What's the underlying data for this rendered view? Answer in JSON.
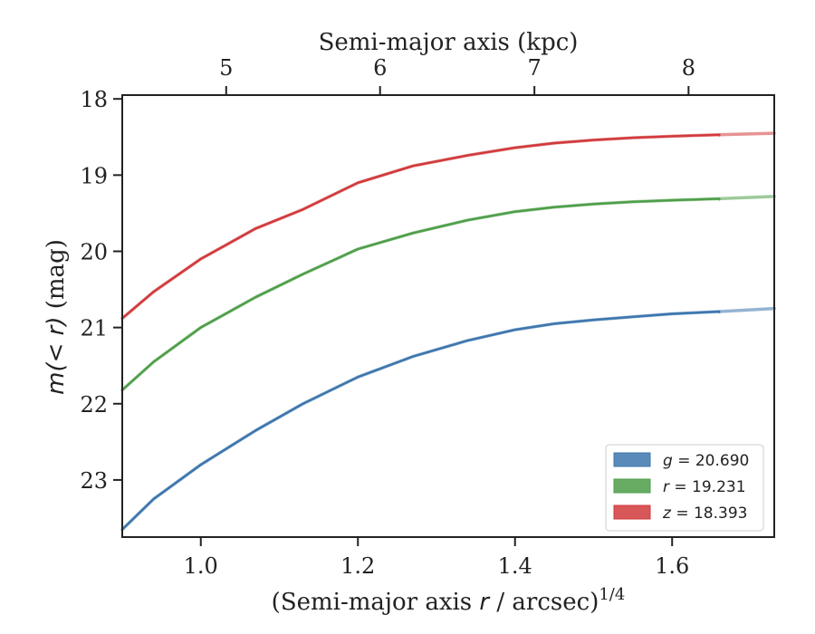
{
  "chart_data": {
    "type": "line",
    "xlabel_main": "(Semi-major axis ",
    "xlabel_var": "r",
    "xlabel_tail": " / arcsec)",
    "xlabel_sup": "1/4",
    "ylabel_main": "m",
    "ylabel_var": "(< r)",
    "ylabel_tail": " (mag)",
    "top_xlabel": "Semi-major axis (kpc)",
    "xlim": [
      0.9,
      1.73
    ],
    "ylim": [
      23.75,
      17.95
    ],
    "y_inverted": true,
    "xticks": [
      1.0,
      1.2,
      1.4,
      1.6
    ],
    "xtick_labels": [
      "1.0",
      "1.2",
      "1.4",
      "1.6"
    ],
    "yticks": [
      18,
      19,
      20,
      21,
      22,
      23
    ],
    "ytick_labels": [
      "18",
      "19",
      "20",
      "21",
      "22",
      "23"
    ],
    "top_ticks_kpc": [
      5,
      6,
      7,
      8
    ],
    "top_tick_labels": [
      "5",
      "6",
      "7",
      "8"
    ],
    "top_tick_positions_x": [
      1.0323,
      1.2282,
      1.4247,
      1.6209
    ],
    "grid": false,
    "legend_position": "lower-right",
    "series": [
      {
        "name_var": "g",
        "name_value": " = 20.690",
        "color": "#3d76ad",
        "x": [
          0.9,
          0.94,
          1.0,
          1.07,
          1.13,
          1.2,
          1.27,
          1.34,
          1.4,
          1.45,
          1.5,
          1.55,
          1.6,
          1.66,
          1.73
        ],
        "y": [
          23.65,
          23.25,
          22.8,
          22.35,
          22.0,
          21.65,
          21.38,
          21.17,
          21.03,
          20.95,
          20.9,
          20.86,
          20.82,
          20.79,
          20.75
        ]
      },
      {
        "name_var": "r",
        "name_value": " = 19.231",
        "color": "#4e9e49",
        "x": [
          0.9,
          0.94,
          1.0,
          1.07,
          1.13,
          1.2,
          1.27,
          1.34,
          1.4,
          1.45,
          1.5,
          1.55,
          1.6,
          1.66,
          1.73
        ],
        "y": [
          21.82,
          21.45,
          21.0,
          20.6,
          20.3,
          19.97,
          19.76,
          19.59,
          19.48,
          19.42,
          19.38,
          19.35,
          19.33,
          19.31,
          19.28
        ]
      },
      {
        "name_var": "z",
        "name_value": " = 18.393",
        "color": "#d13a3c",
        "x": [
          0.9,
          0.94,
          1.0,
          1.07,
          1.13,
          1.2,
          1.27,
          1.34,
          1.4,
          1.45,
          1.5,
          1.55,
          1.6,
          1.66,
          1.73
        ],
        "y": [
          20.88,
          20.53,
          20.1,
          19.7,
          19.45,
          19.1,
          18.88,
          18.74,
          18.64,
          18.58,
          18.54,
          18.51,
          18.49,
          18.47,
          18.45
        ]
      }
    ]
  }
}
